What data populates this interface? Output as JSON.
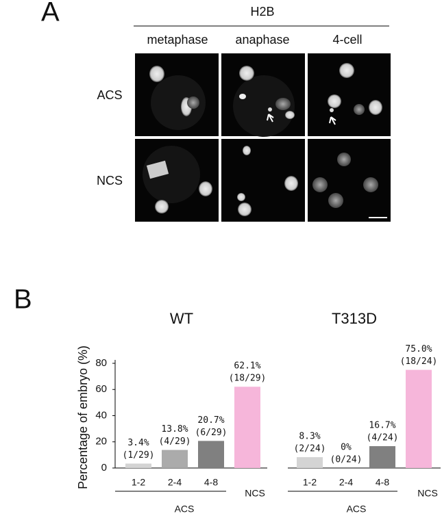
{
  "panel_a": {
    "label": "A",
    "stain": "H2B",
    "columns": [
      "metaphase",
      "anaphase",
      "4-cell"
    ],
    "rows": [
      "ACS",
      "NCS"
    ]
  },
  "panel_b": {
    "label": "B"
  },
  "chart_data": [
    {
      "type": "bar",
      "title": "WT",
      "y_label": "Percentage of embryo (%)",
      "categories": [
        "1-2",
        "2-4",
        "4-8",
        "NCS"
      ],
      "group_label": "ACS",
      "values": [
        3.4,
        13.8,
        20.7,
        62.1
      ],
      "value_labels": [
        "3.4%",
        "13.8%",
        "20.7%",
        "62.1%"
      ],
      "counts": [
        "(1/29)",
        "(4/29)",
        "(6/29)",
        "(18/29)"
      ],
      "colors": [
        "#d4d4d4",
        "#ababab",
        "#808080",
        "#f6b6da"
      ],
      "ylim": [
        0,
        80
      ],
      "yticks": [
        0,
        20,
        40,
        60,
        80
      ]
    },
    {
      "type": "bar",
      "title": "T313D",
      "categories": [
        "1-2",
        "2-4",
        "4-8",
        "NCS"
      ],
      "group_label": "ACS",
      "values": [
        8.3,
        0,
        16.7,
        75.0
      ],
      "value_labels": [
        "8.3%",
        "0%",
        "16.7%",
        "75.0%"
      ],
      "counts": [
        "(2/24)",
        "(0/24)",
        "(4/24)",
        "(18/24)"
      ],
      "colors": [
        "#d4d4d4",
        "#ababab",
        "#808080",
        "#f6b6da"
      ],
      "ylim": [
        0,
        80
      ]
    }
  ]
}
